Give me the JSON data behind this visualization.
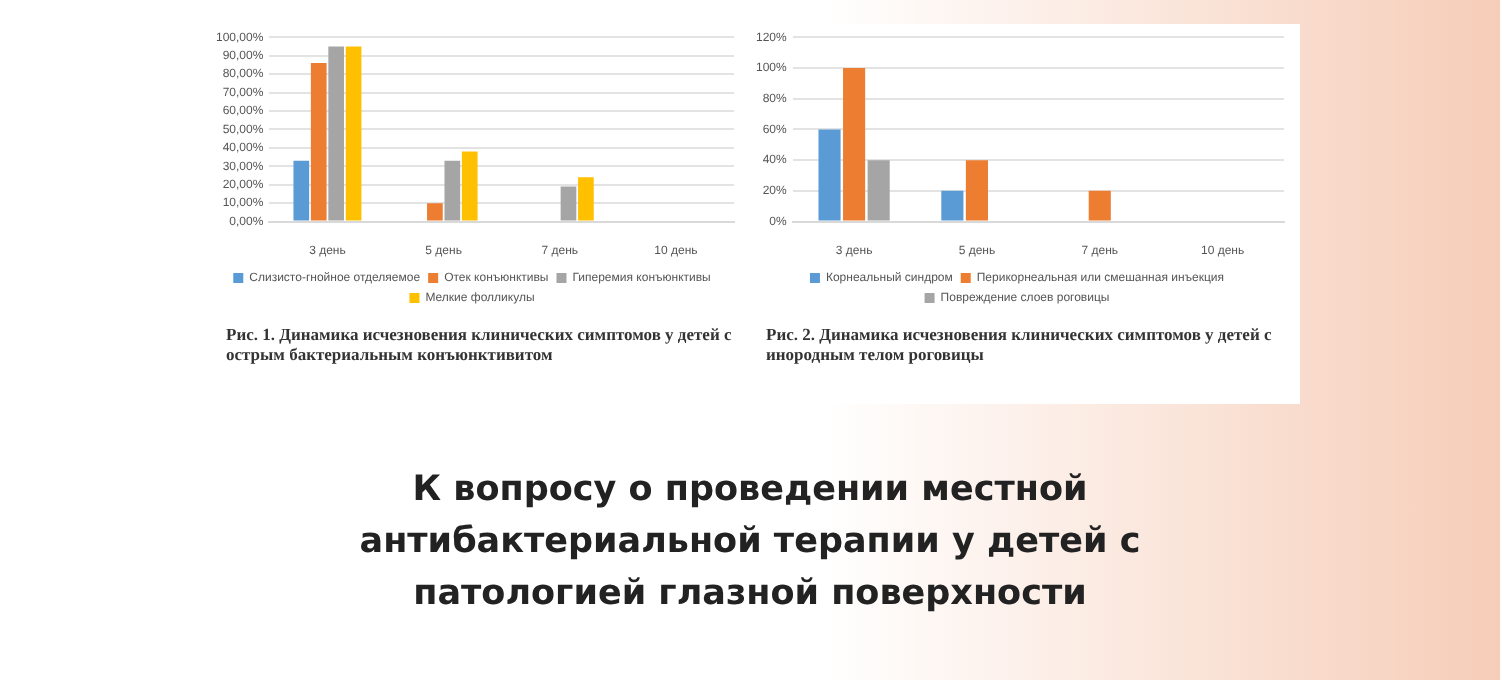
{
  "chart_data": [
    {
      "type": "bar",
      "title": "Рис. 1. Динамика исчезновения клинических симптомов у детей с острым бактериальным конъюнктивитом",
      "categories": [
        "3 день",
        "5 день",
        "7 день",
        "10 день"
      ],
      "series": [
        {
          "name": "Слизисто-гнойное отделяемое",
          "color": "#5b9bd5",
          "values": [
            33,
            0,
            0,
            0
          ]
        },
        {
          "name": "Отек конъюнктивы",
          "color": "#ed7d31",
          "values": [
            86,
            10,
            0,
            0
          ]
        },
        {
          "name": "Гиперемия конъюнктивы",
          "color": "#a5a5a5",
          "values": [
            95,
            33,
            19,
            0
          ]
        },
        {
          "name": "Мелкие фолликулы",
          "color": "#ffc000",
          "values": [
            95,
            38,
            24,
            0
          ]
        }
      ],
      "ylim": [
        0,
        100
      ],
      "yticks": [
        {
          "value": 0,
          "label": "0,00%"
        },
        {
          "value": 10,
          "label": "10,00%"
        },
        {
          "value": 20,
          "label": "20,00%"
        },
        {
          "value": 30,
          "label": "30,00%"
        },
        {
          "value": 40,
          "label": "40,00%"
        },
        {
          "value": 50,
          "label": "50,00%"
        },
        {
          "value": 60,
          "label": "60,00%"
        },
        {
          "value": 70,
          "label": "70,00%"
        },
        {
          "value": 80,
          "label": "80,00%"
        },
        {
          "value": 90,
          "label": "90,00%"
        },
        {
          "value": 100,
          "label": "100,00%"
        }
      ],
      "grid": "y",
      "legend": "bottom"
    },
    {
      "type": "bar",
      "title": "Рис. 2. Динамика исчезновения клинических симптомов у детей с инородным телом роговицы",
      "categories": [
        "3 день",
        "5 день",
        "7 день",
        "10 день"
      ],
      "series": [
        {
          "name": "Корнеальный синдром",
          "color": "#5b9bd5",
          "values": [
            60,
            20,
            0,
            0
          ]
        },
        {
          "name": "Перикорнеальная или смешанная инъекция",
          "color": "#ed7d31",
          "values": [
            100,
            40,
            20,
            0
          ]
        },
        {
          "name": "Повреждение слоев роговицы",
          "color": "#a5a5a5",
          "values": [
            40,
            0,
            0,
            0
          ]
        }
      ],
      "ylim": [
        0,
        120
      ],
      "yticks": [
        {
          "value": 0,
          "label": "0%"
        },
        {
          "value": 20,
          "label": "20%"
        },
        {
          "value": 40,
          "label": "40%"
        },
        {
          "value": 60,
          "label": "60%"
        },
        {
          "value": 80,
          "label": "80%"
        },
        {
          "value": 100,
          "label": "100%"
        },
        {
          "value": 120,
          "label": "120%"
        }
      ],
      "grid": "y",
      "legend": "bottom"
    },
    {
      "type": "other",
      "title": "К вопросу о проведении местной антибактериальной терапии у детей с патологией глазной поверхности"
    }
  ]
}
